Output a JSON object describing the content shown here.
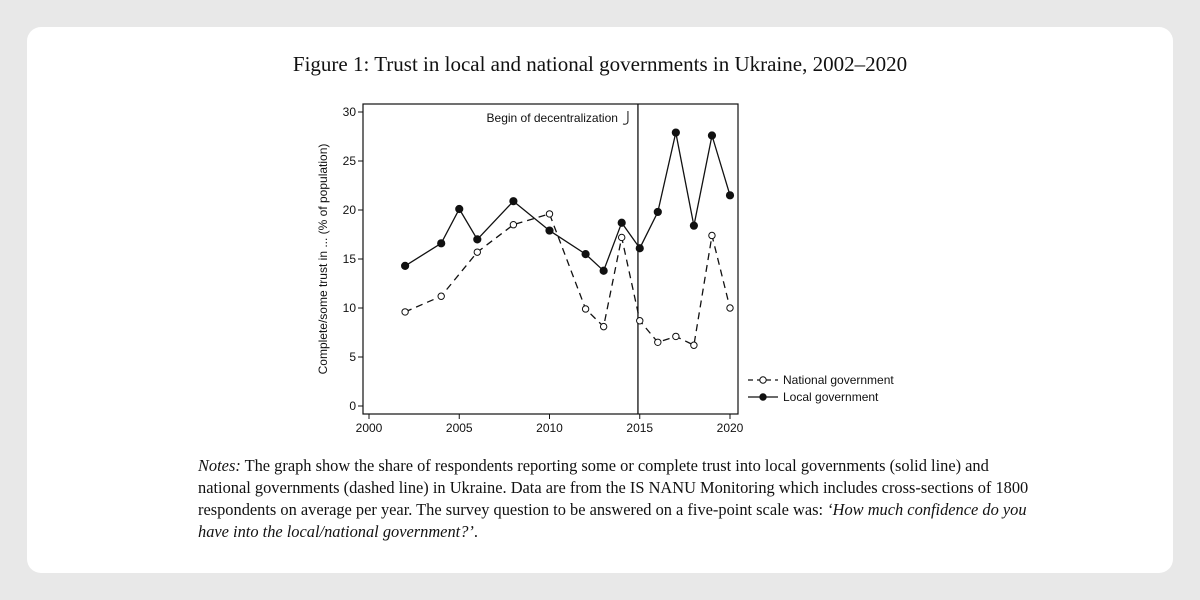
{
  "figure": {
    "title": "Figure 1: Trust in local and national governments in Ukraine, 2002–2020"
  },
  "chart_data": {
    "type": "line",
    "title": "",
    "xlabel": "",
    "ylabel": "Complete/some trust in ... (% of population)",
    "xlim": [
      2000,
      2020
    ],
    "ylim": [
      0,
      30
    ],
    "x_ticks": [
      "2000",
      "2005",
      "2010",
      "2015",
      "2020"
    ],
    "y_ticks": [
      "0",
      "5",
      "10",
      "15",
      "20",
      "25",
      "30"
    ],
    "grid": false,
    "legend_position": "right",
    "annotation": {
      "text": "Begin of decentralization",
      "x": 2014.9
    },
    "series": [
      {
        "name": "National government",
        "style": "dashed",
        "marker": "hollow-circle",
        "x": [
          2002,
          2004,
          2006,
          2008,
          2010,
          2012,
          2013,
          2014,
          2015,
          2016,
          2017,
          2018,
          2019,
          2020
        ],
        "values": [
          9.6,
          11.2,
          15.7,
          18.5,
          19.6,
          9.9,
          8.1,
          17.2,
          8.7,
          6.5,
          7.1,
          6.2,
          17.4,
          10.0
        ]
      },
      {
        "name": "Local government",
        "style": "solid",
        "marker": "filled-circle",
        "x": [
          2002,
          2004,
          2005,
          2006,
          2008,
          2010,
          2012,
          2013,
          2014,
          2015,
          2016,
          2017,
          2018,
          2019,
          2020
        ],
        "values": [
          14.3,
          16.6,
          20.1,
          17.0,
          20.9,
          17.9,
          15.5,
          13.8,
          18.7,
          16.1,
          19.8,
          27.9,
          18.4,
          27.6,
          21.5
        ]
      }
    ]
  },
  "notes": {
    "label": "Notes:",
    "body": " The graph show the share of respondents reporting some or complete trust into local governments (solid line) and national governments (dashed line) in Ukraine. Data are from the IS NANU Monitoring which includes cross-sections of 1800 respondents on average per year. The survey question to be answered on a five-point scale was: ",
    "question": "‘How much confidence do you have into the local/national government?’",
    "end": "."
  },
  "colors": {
    "page_bg": "#e8e8e8",
    "card_bg": "#ffffff",
    "ink": "#111111"
  }
}
